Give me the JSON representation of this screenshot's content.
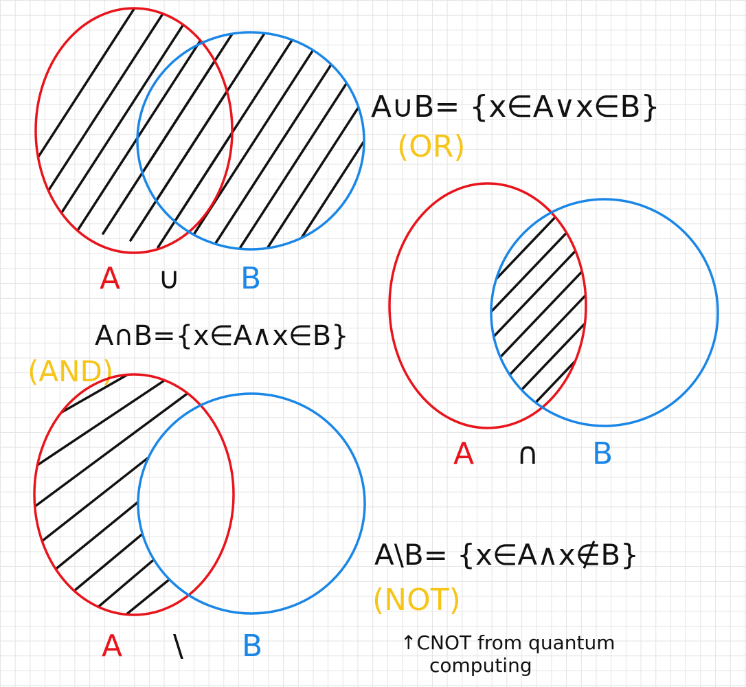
{
  "colors": {
    "set_a": "#e8141b",
    "set_b": "#1a86e6",
    "note": "#f5c518",
    "ink": "#111111"
  },
  "union": {
    "label_a": "A",
    "operator": "∪",
    "label_b": "B",
    "formula": "A∪B= {x∈A∨x∈B}",
    "logic_word": "(OR)"
  },
  "intersection": {
    "label_a": "A",
    "operator": "∩",
    "label_b": "B",
    "formula": "A∩B={x∈A∧x∈B}",
    "logic_word": "(AND)"
  },
  "difference": {
    "label_a": "A",
    "operator": "\\",
    "label_b": "B",
    "formula": "A\\B= {x∈A∧x∉B}",
    "logic_word": "(NOT)",
    "note_line1": "↑CNOT from quantum",
    "note_line2": "computing"
  }
}
